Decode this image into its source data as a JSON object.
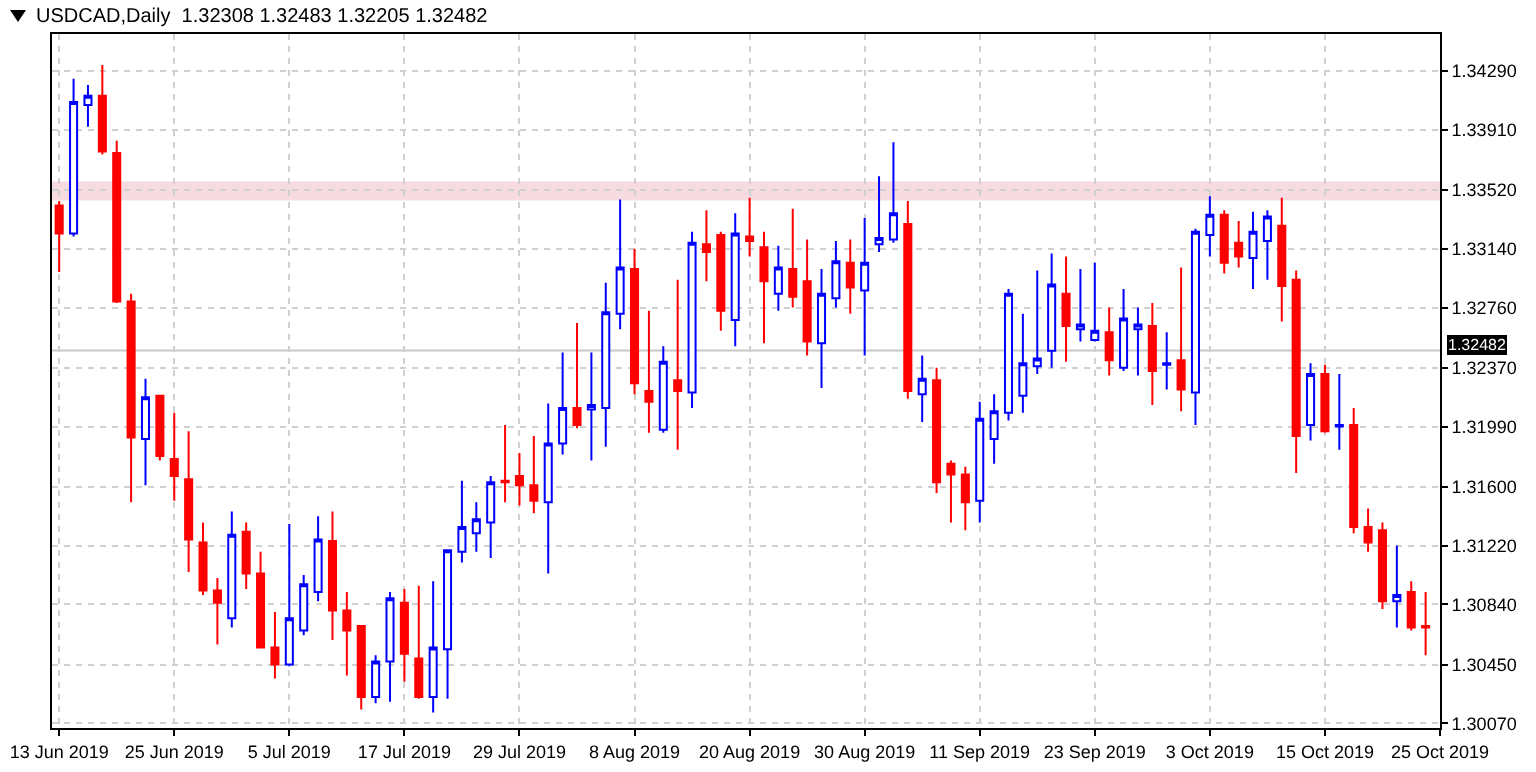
{
  "chart_data": {
    "type": "candlestick",
    "title": "USDCAD,Daily  1.32308 1.32483 1.32205 1.32482",
    "categories": [
      "13 Jun 2019",
      null,
      null,
      null,
      null,
      null,
      null,
      null,
      "25 Jun 2019",
      null,
      null,
      null,
      null,
      null,
      null,
      null,
      "5 Jul 2019",
      null,
      null,
      null,
      null,
      null,
      null,
      null,
      "17 Jul 2019",
      null,
      null,
      null,
      null,
      null,
      null,
      null,
      "29 Jul 2019",
      null,
      null,
      null,
      null,
      null,
      null,
      null,
      "8 Aug 2019",
      null,
      null,
      null,
      null,
      null,
      null,
      null,
      "20 Aug 2019",
      null,
      null,
      null,
      null,
      null,
      null,
      null,
      "30 Aug 2019",
      null,
      null,
      null,
      null,
      null,
      null,
      null,
      "11 Sep 2019",
      null,
      null,
      null,
      null,
      null,
      null,
      null,
      "23 Sep 2019",
      null,
      null,
      null,
      null,
      null,
      null,
      null,
      "3 Oct 2019",
      null,
      null,
      null,
      null,
      null,
      null,
      null,
      "15 Oct 2019",
      null,
      null,
      null,
      null,
      null,
      null,
      null,
      "25 Oct 2019"
    ],
    "ohlc": [
      [
        1.3342,
        1.3345,
        1.3299,
        1.3324
      ],
      [
        1.3324,
        1.3424,
        1.3322,
        1.3409
      ],
      [
        1.3407,
        1.342,
        1.3393,
        1.3413
      ],
      [
        1.3413,
        1.3433,
        1.3375,
        1.3377
      ],
      [
        1.3376,
        1.3384,
        1.3279,
        1.328
      ],
      [
        1.328,
        1.3285,
        1.315,
        1.3192
      ],
      [
        1.3191,
        1.323,
        1.3161,
        1.3218
      ],
      [
        1.3219,
        1.3219,
        1.3177,
        1.318
      ],
      [
        1.3178,
        1.3208,
        1.3151,
        1.3167
      ],
      [
        1.3165,
        1.3196,
        1.3105,
        1.3126
      ],
      [
        1.3124,
        1.3137,
        1.309,
        1.3093
      ],
      [
        1.3093,
        1.3101,
        1.3058,
        1.3085
      ],
      [
        1.3075,
        1.3144,
        1.3069,
        1.3129
      ],
      [
        1.3131,
        1.3137,
        1.3094,
        1.3104
      ],
      [
        1.3104,
        1.3118,
        1.3056,
        1.3056
      ],
      [
        1.3056,
        1.3079,
        1.3036,
        1.3045
      ],
      [
        1.3045,
        1.3136,
        1.3044,
        1.3075
      ],
      [
        1.3067,
        1.3103,
        1.3064,
        1.3097
      ],
      [
        1.3092,
        1.3141,
        1.3086,
        1.3126
      ],
      [
        1.3125,
        1.3144,
        1.3061,
        1.308
      ],
      [
        1.308,
        1.3092,
        1.3038,
        1.3067
      ],
      [
        1.307,
        1.307,
        1.3016,
        1.3024
      ],
      [
        1.3024,
        1.3051,
        1.302,
        1.3047
      ],
      [
        1.3047,
        1.3092,
        1.3021,
        1.3088
      ],
      [
        1.3085,
        1.3094,
        1.3034,
        1.3052
      ],
      [
        1.3049,
        1.3096,
        1.3023,
        1.3024
      ],
      [
        1.3024,
        1.3099,
        1.3014,
        1.3056
      ],
      [
        1.3055,
        1.3119,
        1.3023,
        1.3119
      ],
      [
        1.3118,
        1.3164,
        1.3111,
        1.3134
      ],
      [
        1.313,
        1.315,
        1.3118,
        1.3139
      ],
      [
        1.3137,
        1.3167,
        1.3114,
        1.3163
      ],
      [
        1.3164,
        1.32,
        1.315,
        1.3163
      ],
      [
        1.3167,
        1.3182,
        1.3148,
        1.3161
      ],
      [
        1.3161,
        1.3193,
        1.3143,
        1.3151
      ],
      [
        1.315,
        1.3214,
        1.3104,
        1.3188
      ],
      [
        1.3188,
        1.3247,
        1.3181,
        1.3211
      ],
      [
        1.3211,
        1.3266,
        1.3198,
        1.32
      ],
      [
        1.321,
        1.3247,
        1.3177,
        1.3213
      ],
      [
        1.3211,
        1.3292,
        1.3186,
        1.3273
      ],
      [
        1.3272,
        1.3346,
        1.3262,
        1.3302
      ],
      [
        1.3301,
        1.3314,
        1.322,
        1.3227
      ],
      [
        1.3222,
        1.3274,
        1.3195,
        1.3215
      ],
      [
        1.3197,
        1.3251,
        1.3195,
        1.3241
      ],
      [
        1.3229,
        1.3294,
        1.3184,
        1.3222
      ],
      [
        1.3221,
        1.3325,
        1.3211,
        1.3318
      ],
      [
        1.3317,
        1.3339,
        1.3293,
        1.3312
      ],
      [
        1.3323,
        1.3325,
        1.3261,
        1.3274
      ],
      [
        1.3268,
        1.3337,
        1.3251,
        1.3324
      ],
      [
        1.3322,
        1.3347,
        1.3309,
        1.3319
      ],
      [
        1.3315,
        1.3325,
        1.3253,
        1.3293
      ],
      [
        1.3285,
        1.3316,
        1.3274,
        1.3302
      ],
      [
        1.3301,
        1.334,
        1.3276,
        1.3283
      ],
      [
        1.3293,
        1.332,
        1.3245,
        1.3254
      ],
      [
        1.3253,
        1.3301,
        1.3224,
        1.3285
      ],
      [
        1.3282,
        1.3319,
        1.3276,
        1.3306
      ],
      [
        1.3305,
        1.332,
        1.3272,
        1.3289
      ],
      [
        1.3287,
        1.3334,
        1.3245,
        1.3305
      ],
      [
        1.3317,
        1.3361,
        1.3312,
        1.3321
      ],
      [
        1.332,
        1.3383,
        1.3318,
        1.3337
      ],
      [
        1.333,
        1.3345,
        1.3217,
        1.3222
      ],
      [
        1.322,
        1.3245,
        1.3202,
        1.323
      ],
      [
        1.3229,
        1.3237,
        1.3156,
        1.3163
      ],
      [
        1.3175,
        1.3177,
        1.3137,
        1.3168
      ],
      [
        1.3168,
        1.3173,
        1.3132,
        1.315
      ],
      [
        1.3151,
        1.3215,
        1.3137,
        1.3204
      ],
      [
        1.3191,
        1.322,
        1.3175,
        1.3209
      ],
      [
        1.3208,
        1.3288,
        1.3203,
        1.3285
      ],
      [
        1.3219,
        1.3272,
        1.3208,
        1.324
      ],
      [
        1.3238,
        1.33,
        1.3233,
        1.3243
      ],
      [
        1.3248,
        1.3311,
        1.3237,
        1.3291
      ],
      [
        1.3285,
        1.3309,
        1.3241,
        1.3264
      ],
      [
        1.3262,
        1.3301,
        1.3254,
        1.3265
      ],
      [
        1.3255,
        1.3305,
        1.3254,
        1.3261
      ],
      [
        1.326,
        1.3276,
        1.3232,
        1.3242
      ],
      [
        1.3237,
        1.3288,
        1.3235,
        1.3269
      ],
      [
        1.3262,
        1.3276,
        1.3232,
        1.3265
      ],
      [
        1.3264,
        1.3279,
        1.3213,
        1.3235
      ],
      [
        1.3239,
        1.326,
        1.3223,
        1.324
      ],
      [
        1.3242,
        1.3302,
        1.3209,
        1.3223
      ],
      [
        1.3221,
        1.3327,
        1.32,
        1.3325
      ],
      [
        1.3323,
        1.3348,
        1.3309,
        1.3336
      ],
      [
        1.3336,
        1.3339,
        1.3298,
        1.3305
      ],
      [
        1.3318,
        1.3332,
        1.3302,
        1.3309
      ],
      [
        1.3308,
        1.3338,
        1.3288,
        1.3325
      ],
      [
        1.3319,
        1.3339,
        1.3294,
        1.3335
      ],
      [
        1.3329,
        1.3347,
        1.3267,
        1.329
      ],
      [
        1.3294,
        1.33,
        1.3169,
        1.3193
      ],
      [
        1.32,
        1.324,
        1.319,
        1.3233
      ],
      [
        1.3233,
        1.3239,
        1.3195,
        1.3196
      ],
      [
        1.3199,
        1.3233,
        1.3184,
        1.32
      ],
      [
        1.32,
        1.3211,
        1.313,
        1.3134
      ],
      [
        1.3134,
        1.3146,
        1.3118,
        1.3124
      ],
      [
        1.3132,
        1.3137,
        1.3081,
        1.3086
      ],
      [
        1.3086,
        1.3122,
        1.3069,
        1.309
      ],
      [
        1.3092,
        1.3099,
        1.3067,
        1.3069
      ],
      [
        1.307,
        1.3092,
        1.3051,
        1.3069
      ],
      null
    ],
    "colors": [
      "#ff0000",
      "#0000ff",
      "#0000ff",
      "#ff0000",
      "#ff0000",
      "#ff0000",
      "#0000ff",
      "#ff0000",
      "#ff0000",
      "#ff0000",
      "#ff0000",
      "#ff0000",
      "#0000ff",
      "#ff0000",
      "#ff0000",
      "#ff0000",
      "#0000ff",
      "#0000ff",
      "#0000ff",
      "#ff0000",
      "#ff0000",
      "#ff0000",
      "#0000ff",
      "#0000ff",
      "#ff0000",
      "#ff0000",
      "#0000ff",
      "#0000ff",
      "#0000ff",
      "#0000ff",
      "#0000ff",
      "#ff0000",
      "#ff0000",
      "#ff0000",
      "#0000ff",
      "#0000ff",
      "#ff0000",
      "#0000ff",
      "#0000ff",
      "#0000ff",
      "#ff0000",
      "#ff0000",
      "#0000ff",
      "#ff0000",
      "#0000ff",
      "#ff0000",
      "#ff0000",
      "#0000ff",
      "#ff0000",
      "#ff0000",
      "#0000ff",
      "#ff0000",
      "#ff0000",
      "#0000ff",
      "#0000ff",
      "#ff0000",
      "#0000ff",
      "#0000ff",
      "#0000ff",
      "#ff0000",
      "#0000ff",
      "#ff0000",
      "#ff0000",
      "#ff0000",
      "#0000ff",
      "#0000ff",
      "#0000ff",
      "#0000ff",
      "#0000ff",
      "#0000ff",
      "#ff0000",
      "#0000ff",
      "#0000ff",
      "#ff0000",
      "#0000ff",
      "#0000ff",
      "#ff0000",
      "#0000ff",
      "#ff0000",
      "#0000ff",
      "#0000ff",
      "#ff0000",
      "#ff0000",
      "#0000ff",
      "#0000ff",
      "#ff0000",
      "#ff0000",
      "#0000ff",
      "#ff0000",
      "#0000ff",
      "#ff0000",
      "#ff0000",
      "#ff0000",
      "#0000ff",
      "#ff0000",
      "#ff0000",
      null
    ],
    "ylim": [
      1.3004,
      1.3453
    ],
    "yticks": [
      {
        "value": 1.3007,
        "label": "1.30070"
      },
      {
        "value": 1.3045,
        "label": "1.30450"
      },
      {
        "value": 1.3084,
        "label": "1.30840"
      },
      {
        "value": 1.3122,
        "label": "1.31220"
      },
      {
        "value": 1.316,
        "label": "1.31600"
      },
      {
        "value": 1.3199,
        "label": "1.31990"
      },
      {
        "value": 1.3237,
        "label": "1.32370"
      },
      {
        "value": 1.3276,
        "label": "1.32760"
      },
      {
        "value": 1.3314,
        "label": "1.33140"
      },
      {
        "value": 1.3352,
        "label": "1.33520"
      },
      {
        "value": 1.3391,
        "label": "1.33910"
      },
      {
        "value": 1.3429,
        "label": "1.34290"
      }
    ],
    "ref_lines": [
      {
        "axis": "y",
        "value": 1.32482,
        "label": "1.32482",
        "color": "#c8c8c8"
      }
    ],
    "bands": [
      {
        "axis": "y",
        "from": 1.3346,
        "to": 1.3357,
        "color": "#e89aac"
      }
    ],
    "grid": true
  }
}
